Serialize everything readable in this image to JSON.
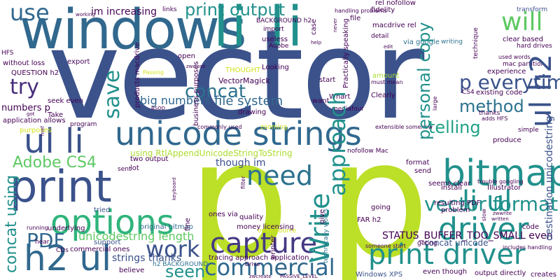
{
  "palette": {
    "lime": "#bcdf27",
    "navy": "#3b528b",
    "teal": "#21918c",
    "blue": "#31688e",
    "green": "#5ec962",
    "seafoam": "#2fb47c",
    "purple": "#440154",
    "indigo": "#472d7b",
    "deep": "#443983",
    "aqua": "#1fa187",
    "slate": "#2c728e",
    "gold": "#addc30",
    "mint": "#7ad151",
    "yellow": "#d2e21b"
  },
  "words": {
    "vector": "vector",
    "p_left": "p",
    "p_right": "p",
    "windows": "windows",
    "li_li": "li li",
    "unicode_strings": "unicode strings",
    "print": "print",
    "ul_li": "ul li",
    "bitmap": "bitmap",
    "print_driver": "print driver",
    "options": "options",
    "capture": "capture",
    "commercial": "commercial",
    "driver": "driver",
    "h2_ul": "h2 ul",
    "work": "work",
    "need": "need",
    "will": "will",
    "li_ul": "li ul",
    "ul_h2": "ul h2",
    "p_everytime": "p everytime",
    "vector_format": "vector format",
    "write": "Write",
    "approach": "approach",
    "save": "save",
    "use": "use",
    "try": "try",
    "concat": "concat",
    "method": "method",
    "telling": "telling",
    "personal_copy": "personal copy",
    "print_output": "print output",
    "adobe_cs4": "Adobe CS4",
    "pdf": "PDF",
    "seen": "seen",
    "concat_using": "concat using",
    "file_system": "file system",
    "big_numbers": "big numbers",
    "unicodestring_length": "unicodestring length",
    "strings_thanks": "strings thanks",
    "status_buffer": "STATUS_BUFFER_TOO_SMALL even",
    "concat_unicode": "concat unicode",
    "destination_unicodestring": "destination unicodestring",
    "using_rtl": "using RtlAppendUnicodeStringToString",
    "though_im": "though im",
    "im_increasing": "im increasing",
    "vectormagick": "VectorMagick",
    "numbers_p": "numbers p",
    "question_h2": "QUESTION h2",
    "application_allows": "application allows",
    "without_loss": "without loss",
    "two_output": "two output",
    "original_bitmap": "original bitmap",
    "money_licensing": "money licensing",
    "ones_via": "ones via",
    "support": "support",
    "commercial_ones": "commercial ones",
    "h2_background": "h2 BACKGROUND",
    "background_h2": "BACKGROUND h2",
    "tracing_approach": "tracing approach application",
    "windows_xps": "Windows XPS",
    "output_directly": "output directly",
    "even_though": "even though",
    "creates": "creates",
    "includes_handling": "includes handling",
    "resulting_pdf": "resulting PDF",
    "illustrator": "Illustrator",
    "seems_clear": "seems clear",
    "existing_code": "existing code",
    "clear_based": "clear based",
    "hard_drives": "hard drives",
    "mac_partition": "mac partition",
    "experience": "experience",
    "transform": "transform",
    "fidelity": "fidelity",
    "rel_nofollow": "rel nofollow",
    "macdrive_rel": "macdrive rel",
    "via_google": "via google",
    "handling_problems": "handling problems",
    "looking": "Looking",
    "clearly": "Clearly",
    "whart": "Whart",
    "mediafour": "mediafour",
    "drawing": "drawing",
    "want": "want",
    "start": "start",
    "tried": "tried",
    "underlying": "underlying",
    "hear": "hear",
    "lot": "lot",
    "quality": "quality",
    "going": "going",
    "format": "format",
    "send": "send",
    "install": "install",
    "problem": "problem",
    "code": "code",
    "fine": "fine",
    "filter": "filter",
    "believe": "believe",
    "links": "links",
    "import": "import",
    "useless": "useless",
    "adobe": "Adobe",
    "case": "case",
    "file": "file",
    "detail": "detail",
    "writing": "writing",
    "amount": "amount",
    "must_mean": "must mean",
    "thought": "THOUGHT",
    "open": "open",
    "export": "export",
    "products_macdrive": "products macdrive",
    "business_purposes": "business purposes",
    "commonly_used": "commonly used",
    "zooming": "zooming",
    "extensible_somehow": "extensible somehow",
    "nofollow_mac": "nofollow Mac",
    "fair_h2": "FAR h2",
    "open_source": "open source",
    "printer": "printer",
    "give": "give",
    "technically_works": "technically works",
    "someone_start": "someone start",
    "geting": "geting",
    "cds": "CDs",
    "running": "running",
    "purposes": "purposes",
    "seek_even": "seek even",
    "take": "Take",
    "program": "program",
    "sent": "sent",
    "keyboard": "keyboard",
    "working": "working",
    "passing": "Passing",
    "zwclose": "zwclose",
    "help": "help",
    "never": "never",
    "practically_speaking": "Practically speaking",
    "large": "large",
    "edit": "edit",
    "technique": "technique",
    "used_words": "used words",
    "thanks": "thanks",
    "adds_hfs": "adds HFS",
    "simple": "simple",
    "produce": "produce",
    "trouble_googling": "trouble googling",
    "slow": "slow",
    "zwwrite": "zwwrite",
    "written": "written",
    "hfs": "HFS",
    "got": "got",
    "href": "href",
    "bsod": "BSOD",
    "drive": "Drive",
    "passive_level": "PASSIVE_LEVEL",
    "zwcreate": "zwcreate",
    "cs4": "CS4"
  }
}
